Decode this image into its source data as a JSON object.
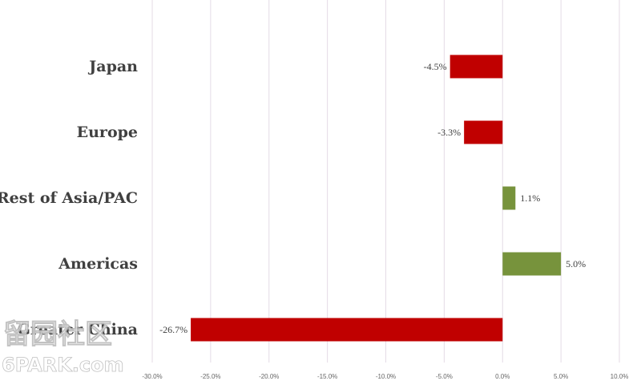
{
  "chart_data": {
    "type": "bar",
    "orientation": "horizontal",
    "categories": [
      "Japan",
      "Europe",
      "Rest of Asia/PAC",
      "Americas",
      "Greater China"
    ],
    "values": [
      -4.5,
      -3.3,
      1.1,
      5.0,
      -26.7
    ],
    "data_labels": [
      "-4.5%",
      "-3.3%",
      "1.1%",
      "5.0%",
      "-26.7%"
    ],
    "xlim": [
      -30,
      10
    ],
    "x_ticks": [
      -30,
      -25,
      -20,
      -15,
      -10,
      -5,
      0,
      5,
      10
    ],
    "x_tick_labels": [
      "-30.0%",
      "-25.0%",
      "-20.0%",
      "-15.0%",
      "-10.0%",
      "-5.0%",
      "0.0%",
      "5.0%",
      "10.0%"
    ],
    "grid": true,
    "colors": {
      "negative": "#c00000",
      "positive": "#77933c",
      "grid": "#e4dbe6"
    }
  },
  "watermark": {
    "cjk": "留园社区",
    "text": "6PARK.com"
  }
}
